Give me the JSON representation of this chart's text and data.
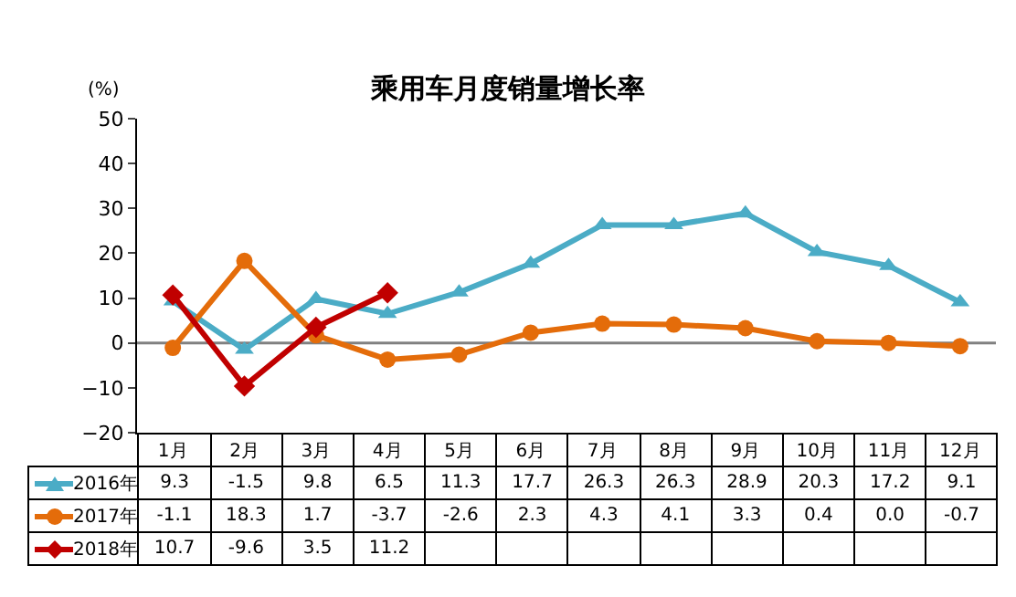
{
  "chart_data": {
    "type": "line",
    "title": "乘用车月度销量增长率",
    "ylabel": "(%)",
    "categories": [
      "1月",
      "2月",
      "3月",
      "4月",
      "5月",
      "6月",
      "7月",
      "8月",
      "9月",
      "10月",
      "11月",
      "12月"
    ],
    "ref_lines": [
      {
        "axis": "y",
        "value": 0,
        "color": "#808080"
      }
    ],
    "ylim": [
      -20,
      50
    ],
    "yticks": [
      -20,
      -10,
      0,
      10,
      20,
      30,
      40,
      50
    ],
    "grid": false,
    "legend": "bottom",
    "series": [
      {
        "name": "2016年",
        "color": "#4bacc6",
        "marker": "triangle",
        "values": [
          9.3,
          -1.5,
          9.8,
          6.5,
          11.3,
          17.7,
          26.3,
          26.3,
          28.9,
          20.3,
          17.2,
          9.1
        ],
        "value_labels": [
          "9.3",
          "-1.5",
          "9.8",
          "6.5",
          "11.3",
          "17.7",
          "26.3",
          "26.3",
          "28.9",
          "20.3",
          "17.2",
          "9.1"
        ]
      },
      {
        "name": "2017年",
        "color": "#e46c0a",
        "marker": "circle",
        "values": [
          -1.1,
          18.3,
          1.7,
          -3.7,
          -2.6,
          2.3,
          4.3,
          4.1,
          3.3,
          0.4,
          0.0,
          -0.7
        ],
        "value_labels": [
          "-1.1",
          "18.3",
          "1.7",
          "-3.7",
          "-2.6",
          "2.3",
          "4.3",
          "4.1",
          "3.3",
          "0.4",
          "0.0",
          "-0.7"
        ]
      },
      {
        "name": "2018年",
        "color": "#c00000",
        "marker": "diamond",
        "values": [
          10.7,
          -9.6,
          3.5,
          11.2,
          null,
          null,
          null,
          null,
          null,
          null,
          null,
          null
        ],
        "value_labels": [
          "10.7",
          "-9.6",
          "3.5",
          "11.2",
          null,
          null,
          null,
          null,
          null,
          null,
          null,
          null
        ]
      }
    ]
  }
}
